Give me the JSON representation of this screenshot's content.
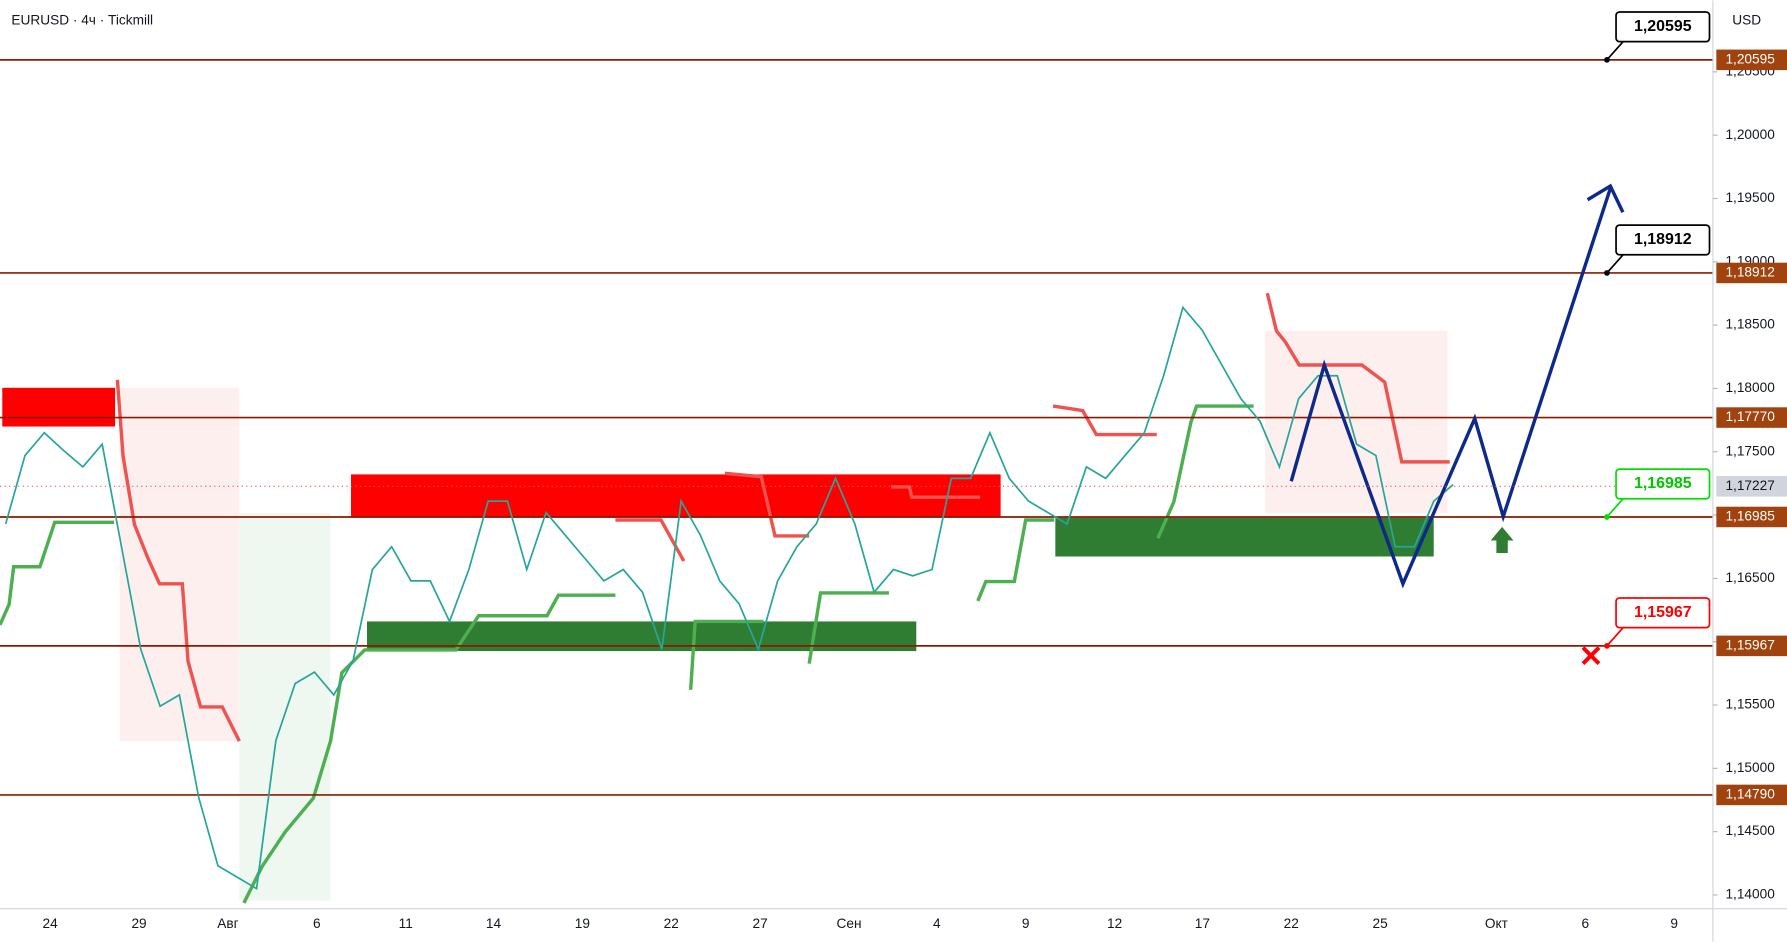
{
  "header": {
    "symbol": "EURUSD · 4ч · Tickmill",
    "currency": "USD"
  },
  "price_axis": {
    "ylim": [
      1.13892,
      1.21065
    ],
    "yticks": [
      {
        "value": 1.14,
        "label": "1,14000"
      },
      {
        "value": 1.145,
        "label": "1,14500"
      },
      {
        "value": 1.15,
        "label": "1,15000"
      },
      {
        "value": 1.155,
        "label": "1,15500"
      },
      {
        "value": 1.16,
        "label": "1,16000"
      },
      {
        "value": 1.165,
        "label": "1,16500"
      },
      {
        "value": 1.17,
        "label": "1,17000"
      },
      {
        "value": 1.175,
        "label": "1,17500"
      },
      {
        "value": 1.18,
        "label": "1,18000"
      },
      {
        "value": 1.185,
        "label": "1,18500"
      },
      {
        "value": 1.19,
        "label": "1,19000"
      },
      {
        "value": 1.195,
        "label": "1,19500"
      },
      {
        "value": 1.2,
        "label": "1,20000"
      },
      {
        "value": 1.205,
        "label": "1,20500"
      }
    ]
  },
  "levels": [
    {
      "value": 1.20595,
      "label": "1,20595"
    },
    {
      "value": 1.18912,
      "label": "1,18912"
    },
    {
      "value": 1.1777,
      "label": "1,17770"
    },
    {
      "value": 1.16985,
      "label": "1,16985"
    },
    {
      "value": 1.15967,
      "label": "1,15967"
    },
    {
      "value": 1.1479,
      "label": "1,14790"
    }
  ],
  "current_price": {
    "value": 1.17227,
    "label": "1,17227"
  },
  "callouts": [
    {
      "value": 1.20595,
      "label": "1,20595",
      "color": "#000000"
    },
    {
      "value": 1.18912,
      "label": "1,18912",
      "color": "#000000"
    },
    {
      "value": 1.16985,
      "label": "1,16985",
      "color": "#00e000"
    },
    {
      "value": 1.15967,
      "label": "1,15967",
      "color": "#ff0000"
    }
  ],
  "dates": [
    "24",
    "29",
    "Авг",
    "6",
    "11",
    "14",
    "19",
    "22",
    "27",
    "Сен",
    "4",
    "9",
    "12",
    "17",
    "22",
    "25",
    "Окт",
    "6",
    "9"
  ],
  "price_path": [
    1.1693,
    1.1747,
    1.1765,
    1.1751,
    1.1738,
    1.1756,
    1.1675,
    1.1594,
    1.1549,
    1.1558,
    1.1477,
    1.1423,
    1.1414,
    1.1405,
    1.1522,
    1.1567,
    1.1576,
    1.1558,
    1.1585,
    1.1657,
    1.1675,
    1.1648,
    1.1648,
    1.1616,
    1.1657,
    1.1711,
    1.1711,
    1.1657,
    1.1702,
    1.1684,
    1.1666,
    1.1648,
    1.1657,
    1.1639,
    1.1594,
    1.1711,
    1.1684,
    1.1648,
    1.163,
    1.1594,
    1.1648,
    1.1675,
    1.1693,
    1.1729,
    1.1693,
    1.1639,
    1.1657,
    1.1652,
    1.1657,
    1.1729,
    1.1729,
    1.1765,
    1.1729,
    1.1711,
    1.1702,
    1.1693,
    1.1738,
    1.1729,
    1.1747,
    1.1765,
    1.181,
    1.1864,
    1.1846,
    1.1819,
    1.1792,
    1.1774,
    1.1738,
    1.1792,
    1.181,
    1.181,
    1.1756,
    1.1747,
    1.1675,
    1.1675,
    1.1711,
    1.1724
  ]
}
